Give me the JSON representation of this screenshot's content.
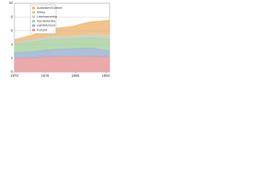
{
  "chart_data": {
    "type": "stacked-area",
    "x": [
      1970,
      1975,
      1980,
      1985,
      1990,
      1995
    ],
    "series": [
      {
        "name": "Europa",
        "color": "#e89a9a",
        "values": [
          2.0,
          2.1,
          2.3,
          2.3,
          2.3,
          2.2
        ]
      },
      {
        "name": "UdSSR/GUS",
        "color": "#9db4d6",
        "values": [
          0.8,
          0.9,
          1.0,
          1.1,
          1.2,
          0.9
        ]
      },
      {
        "name": "Nordamerika",
        "color": "#a9d3a0",
        "values": [
          1.3,
          1.4,
          1.5,
          1.4,
          1.5,
          1.6
        ]
      },
      {
        "name": "Lateinamerika",
        "color": "#c9c9c9",
        "values": [
          0.2,
          0.3,
          0.3,
          0.3,
          0.4,
          0.4
        ]
      },
      {
        "name": "Afrika",
        "color": "#d8d39a",
        "values": [
          0.1,
          0.1,
          0.2,
          0.2,
          0.2,
          0.3
        ]
      },
      {
        "name": "Australien/Ozeani",
        "color": "#f0b878",
        "values": [
          0.3,
          0.6,
          1.0,
          1.3,
          1.7,
          2.1
        ]
      }
    ],
    "xlim": [
      1970,
      1995
    ],
    "xticks": [
      1970,
      1978,
      1986,
      1994
    ],
    "ylim": [
      0,
      10
    ],
    "yticks": [
      0,
      2,
      4,
      6,
      8,
      10
    ],
    "grid": true
  }
}
